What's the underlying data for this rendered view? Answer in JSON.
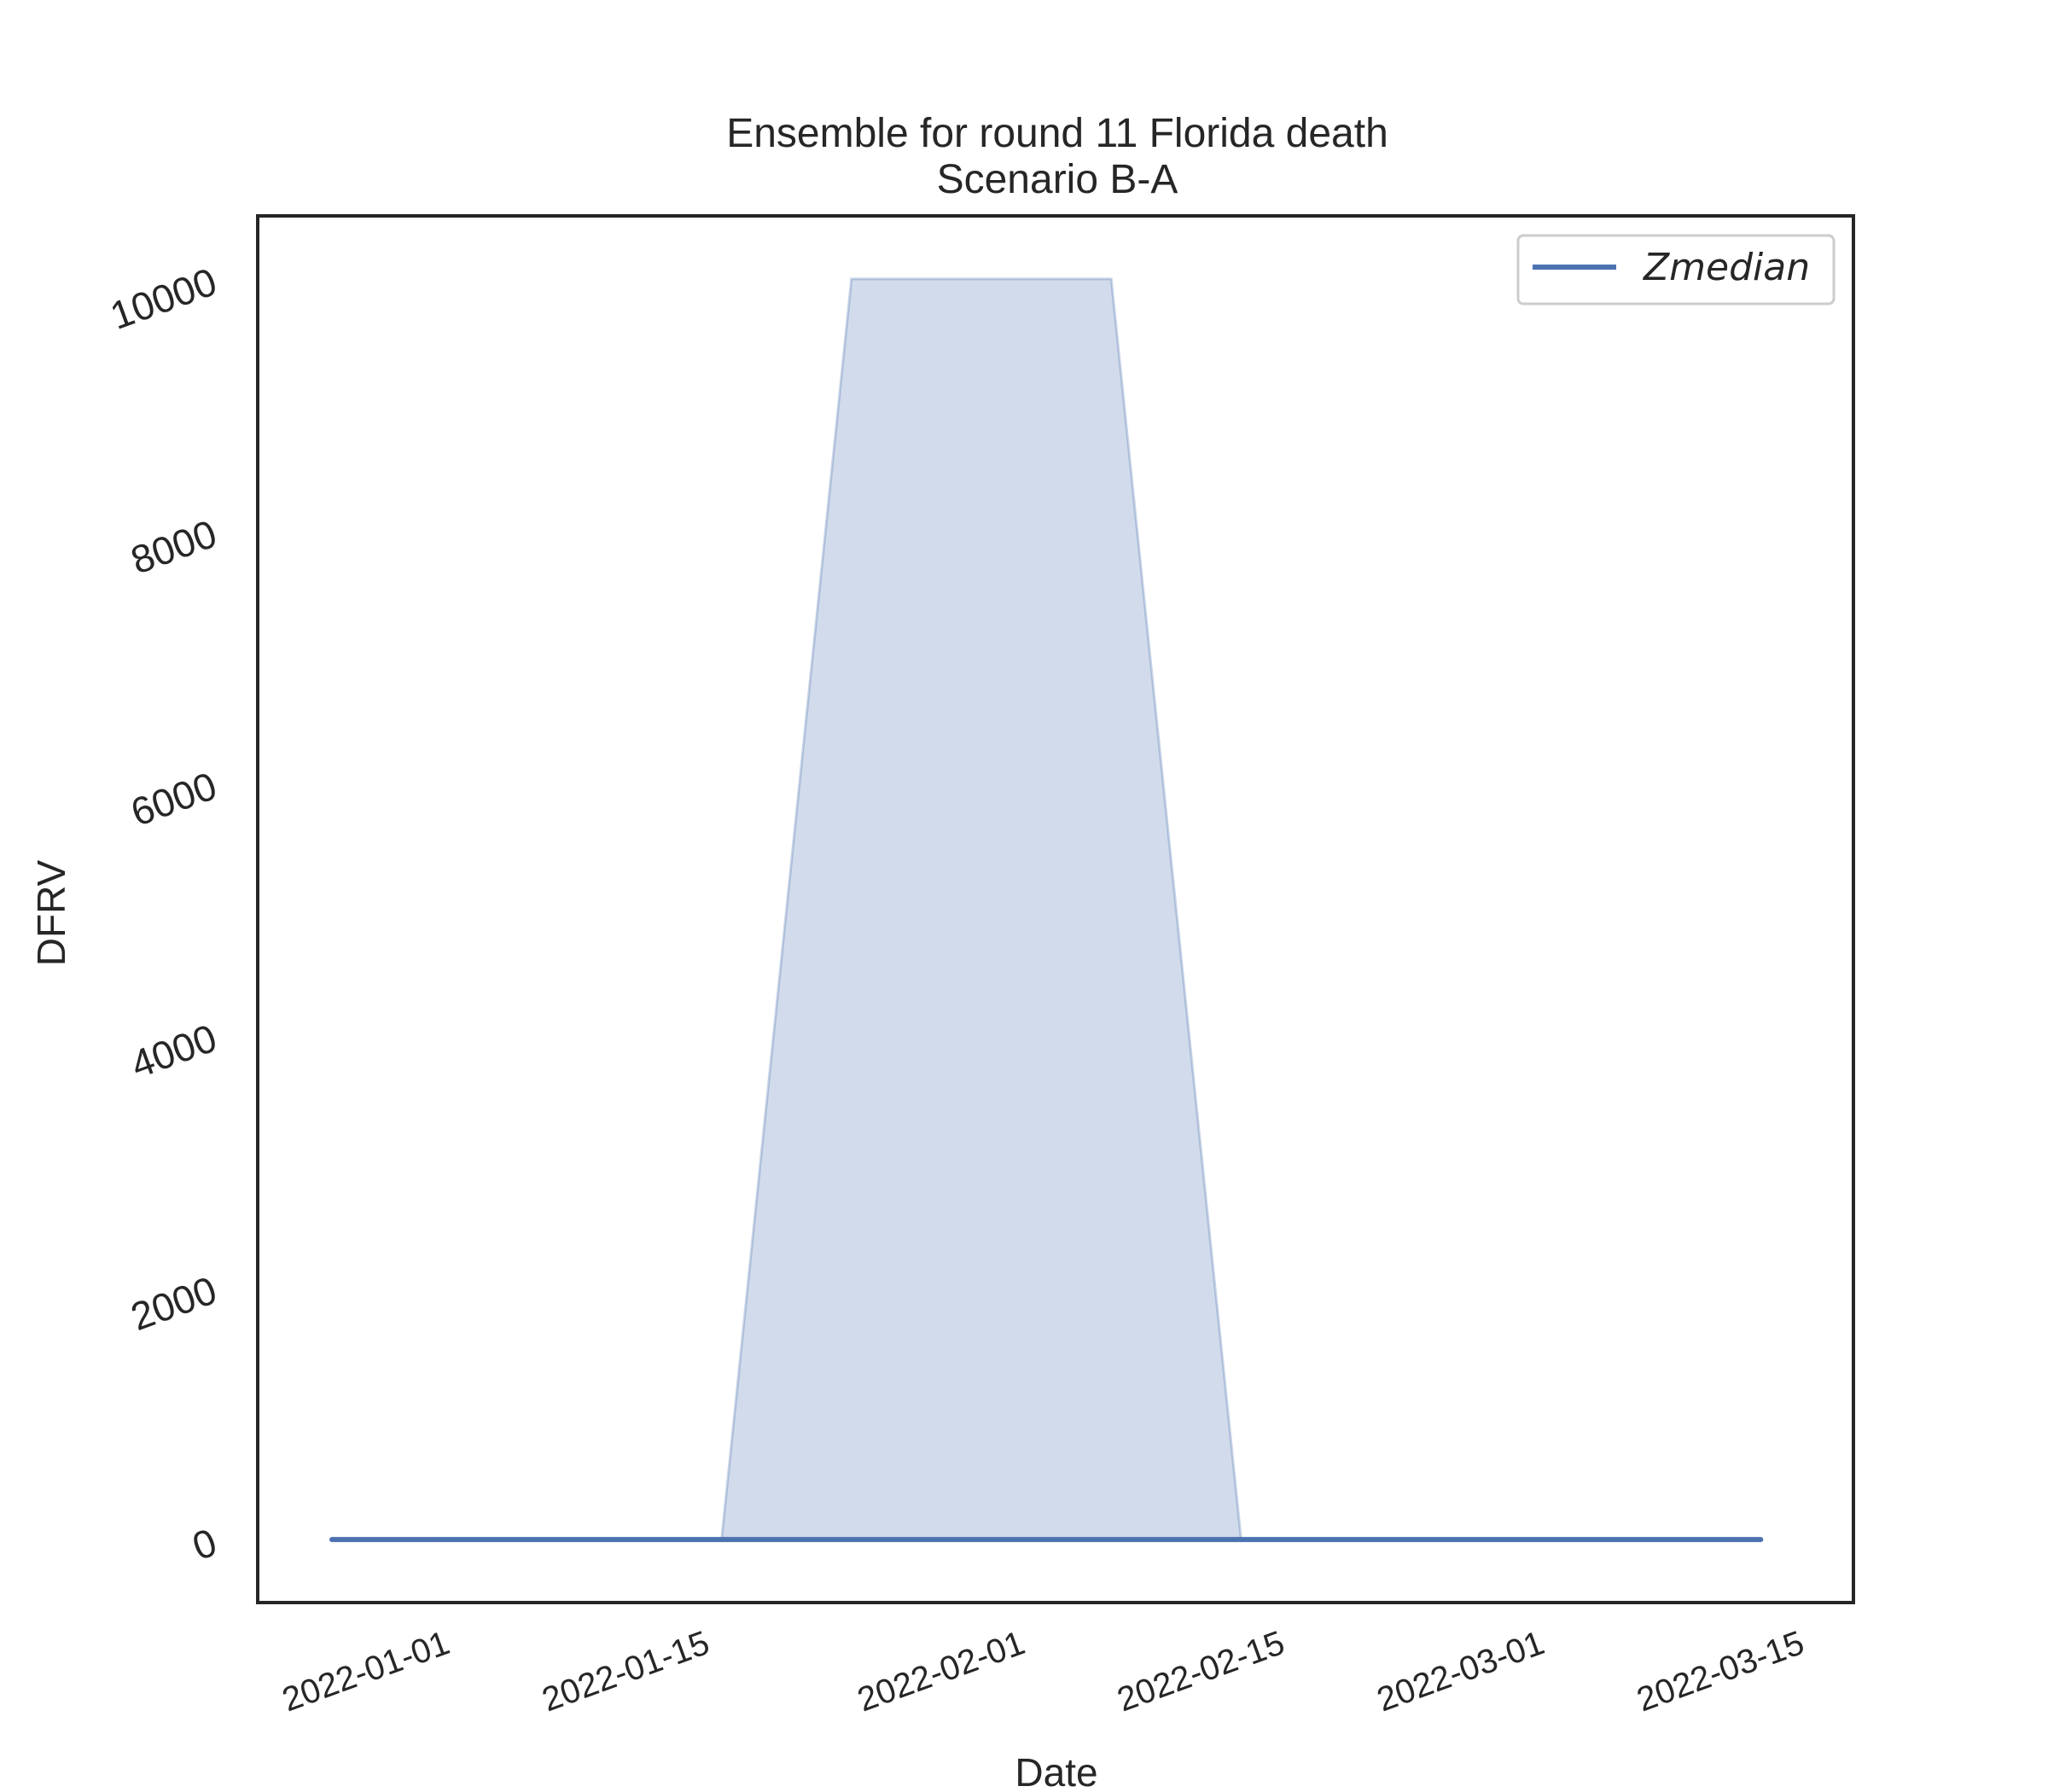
{
  "chart_data": {
    "type": "area",
    "title": "Ensemble for round 11 Florida death",
    "subtitle": "Scenario B-A",
    "xlabel": "Date",
    "ylabel": "DFRV",
    "x_ticks": [
      "2022-01-01",
      "2022-01-15",
      "2022-02-01",
      "2022-02-15",
      "2022-03-01",
      "2022-03-15"
    ],
    "y_ticks": [
      0,
      2000,
      4000,
      6000,
      8000,
      10000
    ],
    "xlim": [
      "2021-12-22",
      "2022-03-18"
    ],
    "ylim": [
      -500,
      10500
    ],
    "grid": false,
    "legend_position": "top-right",
    "series": [
      {
        "name": "Zmedian",
        "color": "#4c72b0",
        "x": [
          "2021-12-26",
          "2022-01-02",
          "2022-01-09",
          "2022-01-16",
          "2022-01-23",
          "2022-01-30",
          "2022-02-06",
          "2022-02-13",
          "2022-02-20",
          "2022-02-27",
          "2022-03-06",
          "2022-03-13"
        ],
        "y": [
          0,
          0,
          0,
          0,
          0,
          0,
          0,
          0,
          0,
          0,
          0,
          0
        ]
      }
    ],
    "band": {
      "color": "#4c72b0",
      "x": [
        "2021-12-26",
        "2022-01-02",
        "2022-01-09",
        "2022-01-16",
        "2022-01-23",
        "2022-01-30",
        "2022-02-06",
        "2022-02-13",
        "2022-02-20",
        "2022-02-27",
        "2022-03-06",
        "2022-03-13"
      ],
      "lower": [
        0,
        0,
        0,
        0,
        0,
        0,
        0,
        0,
        0,
        0,
        0,
        0
      ],
      "upper": [
        0,
        0,
        0,
        0,
        10000,
        10000,
        10000,
        0,
        0,
        0,
        0,
        0
      ]
    }
  }
}
